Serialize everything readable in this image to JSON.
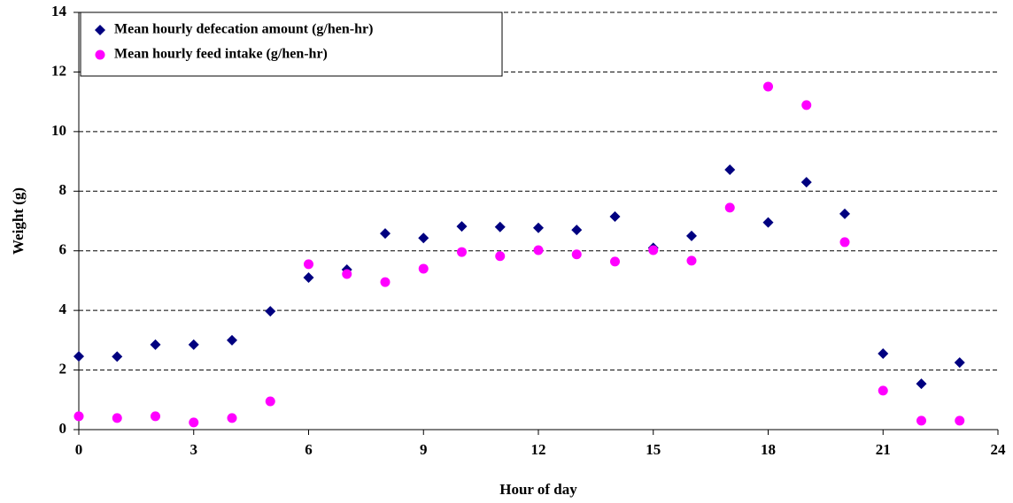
{
  "chart_data": {
    "type": "scatter",
    "x_label": "Hour of day",
    "y_label": "Weight (g)",
    "x": [
      0,
      1,
      2,
      3,
      4,
      5,
      6,
      7,
      8,
      9,
      10,
      11,
      12,
      13,
      14,
      15,
      16,
      17,
      18,
      19,
      20,
      21,
      22,
      23
    ],
    "series": [
      {
        "name": "Mean hourly defecation amount (g/hen-hr)",
        "color": "#000080",
        "marker": "diamond",
        "values": [
          2.46,
          2.45,
          2.85,
          2.85,
          3.0,
          3.97,
          5.1,
          5.37,
          6.58,
          6.43,
          6.82,
          6.8,
          6.77,
          6.7,
          7.15,
          6.1,
          6.5,
          8.72,
          6.95,
          8.3,
          7.24,
          2.55,
          1.54,
          2.25
        ]
      },
      {
        "name": "Mean hourly feed intake (g/hen-hr)",
        "color": "#ff00ff",
        "marker": "circle",
        "values": [
          0.45,
          0.39,
          0.45,
          0.24,
          0.39,
          0.95,
          5.55,
          5.22,
          4.95,
          5.4,
          5.96,
          5.82,
          6.02,
          5.88,
          5.64,
          6.02,
          5.67,
          7.45,
          11.51,
          10.89,
          6.29,
          1.31,
          0.3,
          0.3
        ]
      }
    ],
    "xlim": [
      0,
      24
    ],
    "xticks": [
      0,
      3,
      6,
      9,
      12,
      15,
      18,
      21,
      24
    ],
    "ylim": [
      0,
      14
    ],
    "yticks": [
      0,
      2,
      4,
      6,
      8,
      10,
      12,
      14
    ],
    "grid": true,
    "legend": "top-left"
  }
}
